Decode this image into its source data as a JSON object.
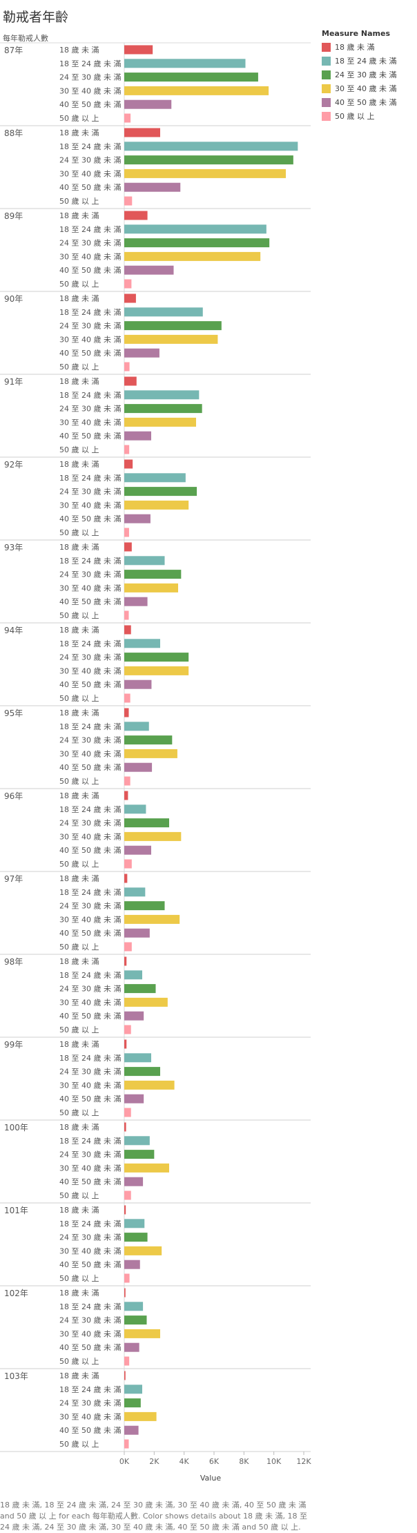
{
  "chart_data": {
    "type": "bar",
    "orientation": "horizontal",
    "title": "勒戒者年齡",
    "row_header": "每年勒戒人數",
    "xlabel": "Value",
    "xlim": [
      0,
      12000
    ],
    "xticks": [
      0,
      2000,
      4000,
      6000,
      8000,
      10000,
      12000
    ],
    "xtick_labels": [
      "0K",
      "2K",
      "4K",
      "6K",
      "8K",
      "10K",
      "12K"
    ],
    "legend_title": "Measure Names",
    "legend_position": "top-right",
    "grid": false,
    "series": [
      {
        "name": "18 歲 未 滿",
        "color": "#e15759"
      },
      {
        "name": "18 至 24 歲 未 滿",
        "color": "#76b7b2"
      },
      {
        "name": "24 至 30 歲 未 滿",
        "color": "#59a14f"
      },
      {
        "name": "30 至 40 歲 未 滿",
        "color": "#edc948"
      },
      {
        "name": "40 至 50 歲 未 滿",
        "color": "#b07aa1"
      },
      {
        "name": "50 歲 以 上",
        "color": "#ff9da7"
      }
    ],
    "groups": [
      {
        "year": "87年",
        "values": [
          1900,
          8100,
          8950,
          9650,
          3150,
          420
        ]
      },
      {
        "year": "88年",
        "values": [
          2400,
          11600,
          11300,
          10800,
          3750,
          520
        ]
      },
      {
        "year": "89年",
        "values": [
          1550,
          9500,
          9700,
          9100,
          3300,
          480
        ]
      },
      {
        "year": "90年",
        "values": [
          780,
          5250,
          6500,
          6250,
          2350,
          350
        ]
      },
      {
        "year": "91年",
        "values": [
          820,
          5000,
          5200,
          4800,
          1800,
          330
        ]
      },
      {
        "year": "92年",
        "values": [
          560,
          4100,
          4850,
          4300,
          1750,
          320
        ]
      },
      {
        "year": "93年",
        "values": [
          500,
          2700,
          3800,
          3600,
          1550,
          300
        ]
      },
      {
        "year": "94年",
        "values": [
          450,
          2400,
          4300,
          4300,
          1820,
          400
        ]
      },
      {
        "year": "95年",
        "values": [
          300,
          1650,
          3200,
          3550,
          1850,
          400
        ]
      },
      {
        "year": "96年",
        "values": [
          250,
          1450,
          3000,
          3800,
          1800,
          500
        ]
      },
      {
        "year": "97年",
        "values": [
          200,
          1400,
          2700,
          3700,
          1700,
          500
        ]
      },
      {
        "year": "98年",
        "values": [
          150,
          1200,
          2100,
          2900,
          1300,
          450
        ]
      },
      {
        "year": "99年",
        "values": [
          150,
          1800,
          2400,
          3350,
          1300,
          450
        ]
      },
      {
        "year": "100年",
        "values": [
          120,
          1700,
          2000,
          3000,
          1250,
          450
        ]
      },
      {
        "year": "101年",
        "values": [
          100,
          1350,
          1550,
          2500,
          1050,
          350
        ]
      },
      {
        "year": "102年",
        "values": [
          80,
          1250,
          1500,
          2400,
          1000,
          330
        ]
      },
      {
        "year": "103年",
        "values": [
          80,
          1200,
          1100,
          2150,
          950,
          300
        ]
      }
    ]
  },
  "caption": "18 歲 未 滿, 18 至 24 歲 未 滿, 24 至 30 歲 未 滿, 30 至 40 歲 未 滿, 40 至 50 歲 未 滿 and 50 歲 以 上 for each 每年勒戒人數.  Color shows details about 18 歲 未 滿, 18 至 24 歲 未 滿, 24 至 30 歲 未 滿, 30 至 40 歲 未 滿, 40 至 50 歲 未 滿 and 50 歲 以 上."
}
